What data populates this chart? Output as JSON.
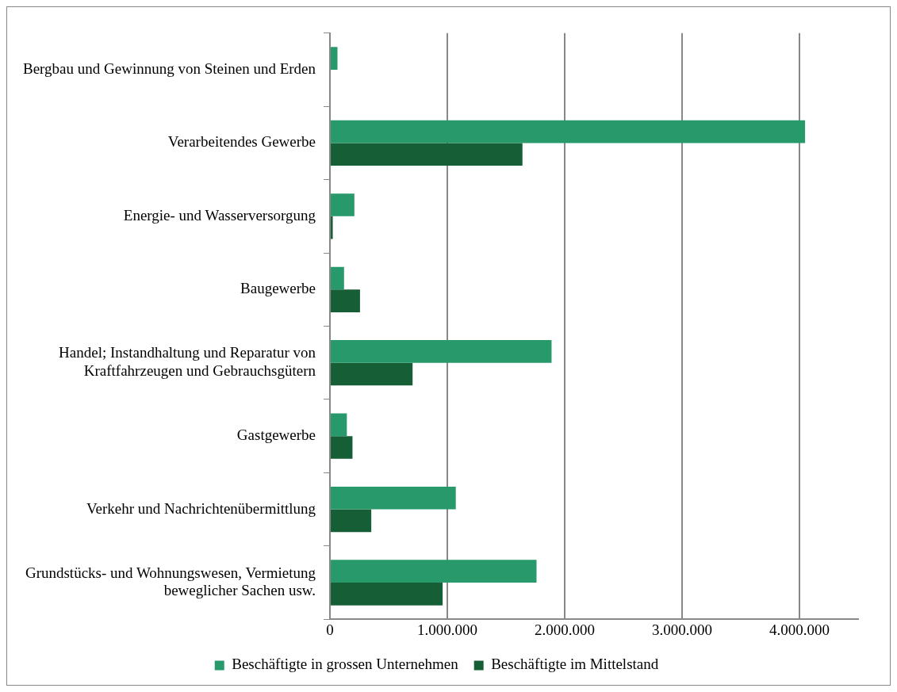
{
  "chart_data": {
    "type": "bar",
    "orientation": "horizontal",
    "categories": [
      "Bergbau und Gewinnung von Steinen und Erden",
      "Verarbeitendes Gewerbe",
      "Energie- und Wasserversorgung",
      "Baugewerbe",
      "Handel; Instandhaltung und Reparatur von Kraftfahrzeugen und Gebrauchsgütern",
      "Gastgewerbe",
      "Verkehr und Nachrichtenübermittlung",
      "Grundstücks- und Wohnungswesen, Vermietung beweglicher Sachen usw."
    ],
    "series": [
      {
        "name": "Beschäftigte in grossen Unternehmen",
        "color": "#27996a",
        "values": [
          64000,
          4048000,
          208000,
          120000,
          1888000,
          144000,
          1072000,
          1760000
        ]
      },
      {
        "name": "Beschäftigte im Mittelstand",
        "color": "#155e36",
        "values": [
          null,
          1640000,
          24000,
          256000,
          704000,
          192000,
          352000,
          960000
        ]
      }
    ],
    "xlim": [
      0,
      4500000
    ],
    "xticks": [
      0,
      {
        "value": 1000000,
        "label": "1.000.000"
      },
      {
        "value": 2000000,
        "label": "2.000.000"
      },
      {
        "value": 3000000,
        "label": "3.000.000"
      },
      {
        "value": 4000000,
        "label": "4.000.000"
      }
    ],
    "grid": "x",
    "legend": "bottom"
  }
}
